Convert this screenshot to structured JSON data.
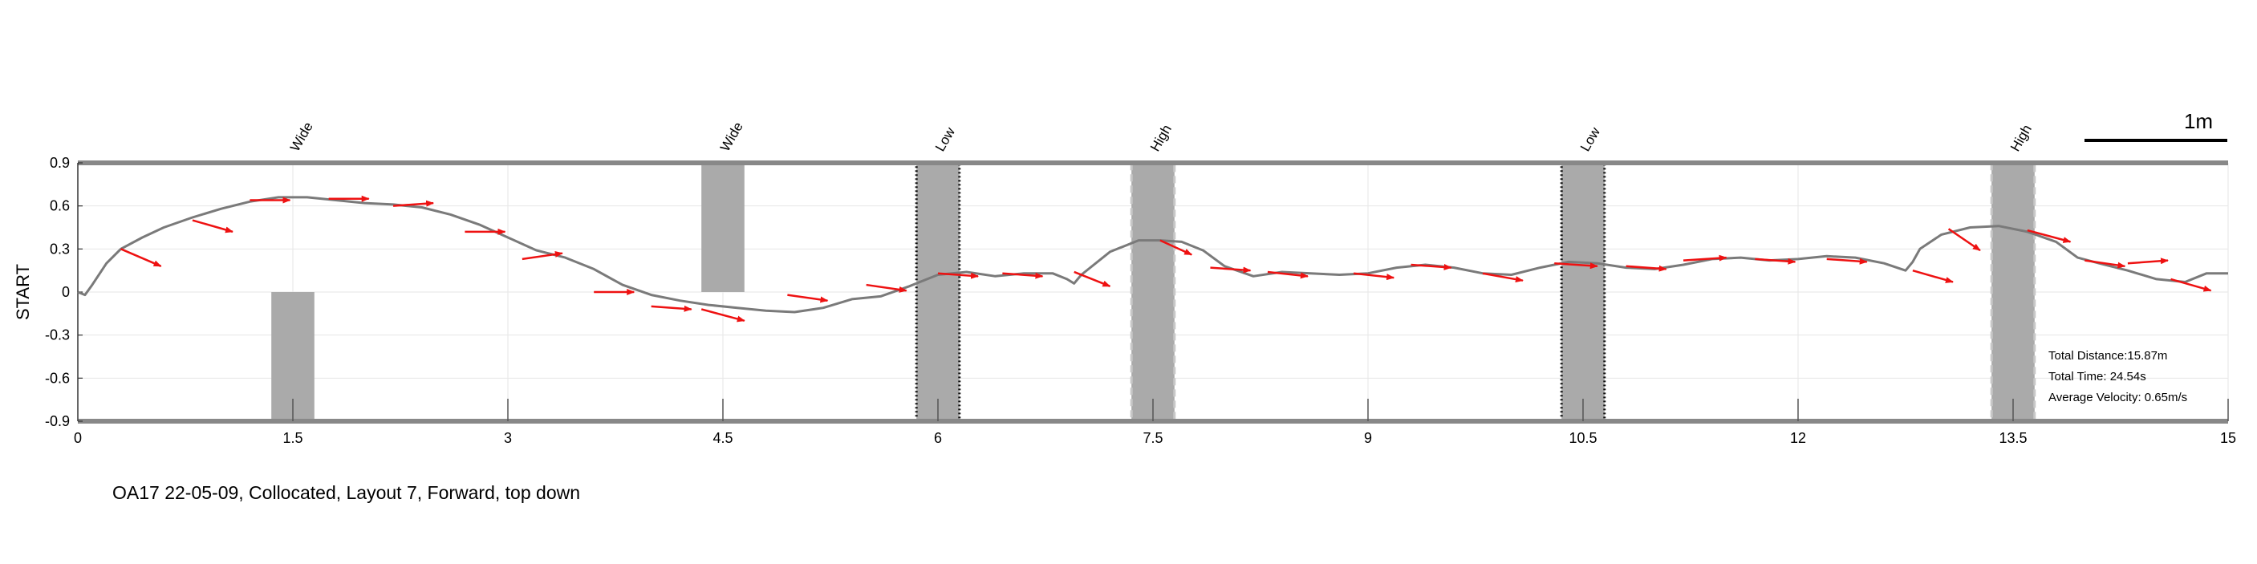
{
  "caption": "OA17 22-05-09, Collocated, Layout 7, Forward, top down",
  "scale_bar_label": "1m",
  "stats": {
    "distance": "Total Distance:15.87m",
    "time": "Total Time: 24.54s",
    "velocity": "Average Velocity: 0.65m/s"
  },
  "colors": {
    "path": "#7a7a7a",
    "arrow": "#ee1111",
    "obstacle": "#aaaaaa",
    "wall": "#888888",
    "grid": "#e6e6e6"
  },
  "chart_data": {
    "type": "line",
    "title": "",
    "xlabel": "",
    "ylabel": "START",
    "xlim": [
      0,
      15
    ],
    "ylim": [
      -0.9,
      0.9
    ],
    "xticks": [
      "0",
      "1.5",
      "3",
      "4.5",
      "6",
      "7.5",
      "9",
      "10.5",
      "12",
      "13.5",
      "15"
    ],
    "xtick_values": [
      0,
      1.5,
      3,
      4.5,
      6,
      7.5,
      9,
      10.5,
      12,
      13.5,
      15
    ],
    "yticks": [
      "0.9",
      "0.6",
      "0.3",
      "0",
      "-0.3",
      "-0.6",
      "-0.9"
    ],
    "ytick_values": [
      0.9,
      0.6,
      0.3,
      0,
      -0.3,
      -0.6,
      -0.9
    ],
    "grid": true,
    "obstacles": [
      {
        "label": "Wide",
        "x0": 1.35,
        "x1": 1.65,
        "y0": -0.9,
        "y1": 0.0,
        "style": "solid"
      },
      {
        "label": "Wide",
        "x0": 4.35,
        "x1": 4.65,
        "y0": 0.0,
        "y1": 0.9,
        "style": "solid"
      },
      {
        "label": "Low",
        "x0": 5.85,
        "x1": 6.15,
        "y0": -0.9,
        "y1": 0.9,
        "style": "dotted"
      },
      {
        "label": "High",
        "x0": 7.35,
        "x1": 7.65,
        "y0": -0.9,
        "y1": 0.9,
        "style": "dashed"
      },
      {
        "label": "Low",
        "x0": 10.35,
        "x1": 10.65,
        "y0": -0.9,
        "y1": 0.9,
        "style": "dotted"
      },
      {
        "label": "High",
        "x0": 13.35,
        "x1": 13.65,
        "y0": -0.9,
        "y1": 0.9,
        "style": "dashed"
      }
    ],
    "path": {
      "x": [
        0,
        0.05,
        0.1,
        0.2,
        0.3,
        0.45,
        0.6,
        0.8,
        1.0,
        1.2,
        1.4,
        1.6,
        1.8,
        2.0,
        2.2,
        2.4,
        2.6,
        2.8,
        3.0,
        3.2,
        3.4,
        3.6,
        3.8,
        4.0,
        4.2,
        4.4,
        4.6,
        4.8,
        5.0,
        5.2,
        5.4,
        5.6,
        5.8,
        6.0,
        6.2,
        6.4,
        6.6,
        6.8,
        6.9,
        6.95,
        7.0,
        7.2,
        7.4,
        7.55,
        7.7,
        7.85,
        8.0,
        8.2,
        8.4,
        8.6,
        8.8,
        9.0,
        9.2,
        9.4,
        9.6,
        9.8,
        10.0,
        10.2,
        10.4,
        10.6,
        10.8,
        11.0,
        11.2,
        11.4,
        11.6,
        11.8,
        12.0,
        12.2,
        12.4,
        12.6,
        12.75,
        12.8,
        12.85,
        13.0,
        13.2,
        13.4,
        13.6,
        13.8,
        13.95,
        14.1,
        14.3,
        14.5,
        14.7,
        14.85,
        15.0
      ],
      "y": [
        0.0,
        -0.02,
        0.05,
        0.2,
        0.3,
        0.38,
        0.45,
        0.52,
        0.58,
        0.63,
        0.66,
        0.66,
        0.64,
        0.62,
        0.61,
        0.59,
        0.54,
        0.47,
        0.38,
        0.29,
        0.24,
        0.16,
        0.05,
        -0.02,
        -0.06,
        -0.09,
        -0.11,
        -0.13,
        -0.14,
        -0.11,
        -0.05,
        -0.03,
        0.04,
        0.12,
        0.14,
        0.11,
        0.13,
        0.13,
        0.09,
        0.06,
        0.12,
        0.28,
        0.36,
        0.36,
        0.35,
        0.29,
        0.18,
        0.11,
        0.14,
        0.13,
        0.12,
        0.13,
        0.17,
        0.19,
        0.17,
        0.13,
        0.12,
        0.17,
        0.21,
        0.2,
        0.17,
        0.16,
        0.19,
        0.23,
        0.24,
        0.22,
        0.23,
        0.25,
        0.24,
        0.2,
        0.15,
        0.21,
        0.3,
        0.4,
        0.45,
        0.46,
        0.42,
        0.35,
        0.24,
        0.2,
        0.15,
        0.09,
        0.07,
        0.13,
        0.13
      ]
    },
    "arrows": [
      {
        "x": 0.3,
        "y": 0.3,
        "dx": 0.28,
        "dy": -0.12
      },
      {
        "x": 0.8,
        "y": 0.5,
        "dx": 0.28,
        "dy": -0.08
      },
      {
        "x": 1.2,
        "y": 0.64,
        "dx": 0.28,
        "dy": 0.0
      },
      {
        "x": 1.75,
        "y": 0.65,
        "dx": 0.28,
        "dy": 0.0
      },
      {
        "x": 2.2,
        "y": 0.6,
        "dx": 0.28,
        "dy": 0.02
      },
      {
        "x": 2.7,
        "y": 0.42,
        "dx": 0.28,
        "dy": 0.0
      },
      {
        "x": 3.1,
        "y": 0.23,
        "dx": 0.28,
        "dy": 0.04
      },
      {
        "x": 3.6,
        "y": 0.0,
        "dx": 0.28,
        "dy": 0.0
      },
      {
        "x": 4.0,
        "y": -0.1,
        "dx": 0.28,
        "dy": -0.02
      },
      {
        "x": 4.35,
        "y": -0.12,
        "dx": 0.3,
        "dy": -0.08
      },
      {
        "x": 4.95,
        "y": -0.02,
        "dx": 0.28,
        "dy": -0.04
      },
      {
        "x": 5.5,
        "y": 0.05,
        "dx": 0.28,
        "dy": -0.04
      },
      {
        "x": 6.0,
        "y": 0.13,
        "dx": 0.28,
        "dy": -0.02
      },
      {
        "x": 6.45,
        "y": 0.13,
        "dx": 0.28,
        "dy": -0.02
      },
      {
        "x": 6.95,
        "y": 0.14,
        "dx": 0.25,
        "dy": -0.1
      },
      {
        "x": 7.55,
        "y": 0.36,
        "dx": 0.22,
        "dy": -0.1
      },
      {
        "x": 7.9,
        "y": 0.17,
        "dx": 0.28,
        "dy": -0.02
      },
      {
        "x": 8.3,
        "y": 0.14,
        "dx": 0.28,
        "dy": -0.03
      },
      {
        "x": 8.9,
        "y": 0.13,
        "dx": 0.28,
        "dy": -0.03
      },
      {
        "x": 9.3,
        "y": 0.19,
        "dx": 0.28,
        "dy": -0.02
      },
      {
        "x": 9.8,
        "y": 0.13,
        "dx": 0.28,
        "dy": -0.05
      },
      {
        "x": 10.3,
        "y": 0.2,
        "dx": 0.3,
        "dy": -0.02
      },
      {
        "x": 10.8,
        "y": 0.18,
        "dx": 0.28,
        "dy": -0.02
      },
      {
        "x": 11.2,
        "y": 0.22,
        "dx": 0.3,
        "dy": 0.02
      },
      {
        "x": 11.7,
        "y": 0.23,
        "dx": 0.28,
        "dy": -0.02
      },
      {
        "x": 12.2,
        "y": 0.23,
        "dx": 0.28,
        "dy": -0.02
      },
      {
        "x": 12.8,
        "y": 0.15,
        "dx": 0.28,
        "dy": -0.08
      },
      {
        "x": 13.05,
        "y": 0.44,
        "dx": 0.22,
        "dy": -0.15
      },
      {
        "x": 13.6,
        "y": 0.43,
        "dx": 0.3,
        "dy": -0.08
      },
      {
        "x": 14.0,
        "y": 0.22,
        "dx": 0.28,
        "dy": -0.04
      },
      {
        "x": 14.3,
        "y": 0.2,
        "dx": 0.28,
        "dy": 0.02
      },
      {
        "x": 14.6,
        "y": 0.09,
        "dx": 0.28,
        "dy": -0.08
      }
    ]
  }
}
